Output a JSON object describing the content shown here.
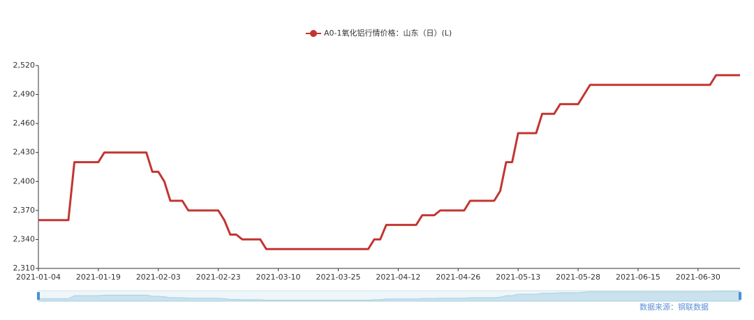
{
  "chart_data": {
    "type": "line",
    "legend": "A0-1氧化铝行情价格：山东（日）(L)",
    "source": "数据来源：钢联数据",
    "color": "#c23531",
    "categories": [
      "2021-01-04",
      null,
      null,
      null,
      null,
      null,
      null,
      null,
      null,
      null,
      "2021-01-19",
      null,
      null,
      null,
      null,
      null,
      null,
      null,
      null,
      null,
      "2021-02-03",
      null,
      null,
      null,
      null,
      null,
      null,
      null,
      null,
      null,
      "2021-02-23",
      null,
      null,
      null,
      null,
      null,
      null,
      null,
      null,
      null,
      "2021-03-10",
      null,
      null,
      null,
      null,
      null,
      null,
      null,
      null,
      null,
      "2021-03-25",
      null,
      null,
      null,
      null,
      null,
      null,
      null,
      null,
      null,
      "2021-04-12",
      null,
      null,
      null,
      null,
      null,
      null,
      null,
      null,
      null,
      "2021-04-26",
      null,
      null,
      null,
      null,
      null,
      null,
      null,
      null,
      null,
      "2021-05-13",
      null,
      null,
      null,
      null,
      null,
      null,
      null,
      null,
      null,
      "2021-05-28",
      null,
      null,
      null,
      null,
      null,
      null,
      null,
      null,
      null,
      "2021-06-15",
      null,
      null,
      null,
      null,
      null,
      null,
      null,
      null,
      null,
      "2021-06-30",
      null,
      null,
      null,
      null,
      null,
      null,
      null
    ],
    "values": [
      2360,
      2360,
      2360,
      2360,
      2360,
      2360,
      2420,
      2420,
      2420,
      2420,
      2420,
      2430,
      2430,
      2430,
      2430,
      2430,
      2430,
      2430,
      2430,
      2410,
      2410,
      2400,
      2380,
      2380,
      2380,
      2370,
      2370,
      2370,
      2370,
      2370,
      2370,
      2360,
      2345,
      2345,
      2340,
      2340,
      2340,
      2340,
      2330,
      2330,
      2330,
      2330,
      2330,
      2330,
      2330,
      2330,
      2330,
      2330,
      2330,
      2330,
      2330,
      2330,
      2330,
      2330,
      2330,
      2330,
      2340,
      2340,
      2355,
      2355,
      2355,
      2355,
      2355,
      2355,
      2365,
      2365,
      2365,
      2370,
      2370,
      2370,
      2370,
      2370,
      2380,
      2380,
      2380,
      2380,
      2380,
      2390,
      2420,
      2420,
      2450,
      2450,
      2450,
      2450,
      2470,
      2470,
      2470,
      2480,
      2480,
      2480,
      2480,
      2490,
      2500,
      2500,
      2500,
      2500,
      2500,
      2500,
      2500,
      2500,
      2500,
      2500,
      2500,
      2500,
      2500,
      2500,
      2500,
      2500,
      2500,
      2500,
      2500,
      2500,
      2500,
      2510,
      2510,
      2510,
      2510,
      2510
    ],
    "ylim": [
      2310,
      2520
    ],
    "yticks": [
      {
        "value": 2310,
        "label": "2,310"
      },
      {
        "value": 2340,
        "label": "2,340"
      },
      {
        "value": 2370,
        "label": "2,370"
      },
      {
        "value": 2400,
        "label": "2,400"
      },
      {
        "value": 2430,
        "label": "2,430"
      },
      {
        "value": 2460,
        "label": "2,460"
      },
      {
        "value": 2490,
        "label": "2,490"
      },
      {
        "value": 2520,
        "label": "2,520"
      }
    ],
    "grid": false
  }
}
